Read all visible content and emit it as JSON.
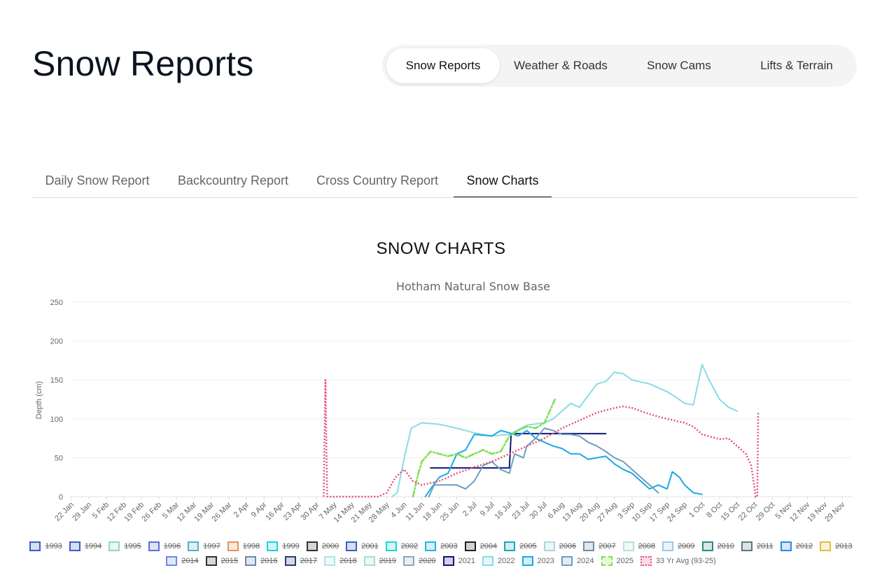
{
  "page": {
    "title": "Snow Reports"
  },
  "topnav": {
    "tabs": [
      {
        "label": "Snow Reports",
        "active": true
      },
      {
        "label": "Weather & Roads",
        "active": false
      },
      {
        "label": "Snow Cams",
        "active": false
      },
      {
        "label": "Lifts & Terrain",
        "active": false
      }
    ]
  },
  "subnav": {
    "tabs": [
      {
        "label": "Daily Snow Report",
        "active": false
      },
      {
        "label": "Backcountry Report",
        "active": false
      },
      {
        "label": "Cross Country Report",
        "active": false
      },
      {
        "label": "Snow Charts",
        "active": true
      }
    ]
  },
  "section": {
    "title": "SNOW CHARTS"
  },
  "chart_data": {
    "type": "line",
    "title": "Hotham Natural Snow Base",
    "ylabel": "Depth (cm)",
    "xlabel": "",
    "ylim": [
      0,
      250
    ],
    "yticks": [
      0,
      50,
      100,
      150,
      200,
      250
    ],
    "grid": true,
    "legend_position": "bottom",
    "categories": [
      "22 Jan",
      "29 Jan",
      "5 Feb",
      "12 Feb",
      "19 Feb",
      "26 Feb",
      "5 Mar",
      "12 Mar",
      "19 Mar",
      "26 Mar",
      "2 Apr",
      "9 Apr",
      "16 Apr",
      "23 Apr",
      "30 Apr",
      "7 May",
      "14 May",
      "21 May",
      "28 May",
      "4 Jun",
      "11 Jun",
      "18 Jun",
      "25 Jun",
      "2 Jul",
      "9 Jul",
      "16 Jul",
      "23 Jul",
      "30 Jul",
      "6 Aug",
      "13 Aug",
      "20 Aug",
      "27 Aug",
      "3 Sep",
      "10 Sep",
      "17 Sep",
      "24 Sep",
      "1 Oct",
      "8 Oct",
      "15 Oct",
      "22 Oct",
      "29 Oct",
      "5 Nov",
      "12 Nov",
      "19 Nov",
      "29 Nov"
    ],
    "legend": [
      {
        "name": "1993",
        "color": "#3b5fc0",
        "hidden": true
      },
      {
        "name": "1994",
        "color": "#3b5fc0",
        "hidden": true
      },
      {
        "name": "1995",
        "color": "#8fd6cc",
        "hidden": true
      },
      {
        "name": "1996",
        "color": "#5a6fd6",
        "hidden": true
      },
      {
        "name": "1997",
        "color": "#4fb3c4",
        "hidden": true
      },
      {
        "name": "1998",
        "color": "#e0955a",
        "hidden": true
      },
      {
        "name": "1999",
        "color": "#1fd1d6",
        "hidden": true
      },
      {
        "name": "2000",
        "color": "#333333",
        "hidden": true
      },
      {
        "name": "2001",
        "color": "#3b5fc0",
        "hidden": true
      },
      {
        "name": "2002",
        "color": "#1fd6d6",
        "hidden": true
      },
      {
        "name": "2003",
        "color": "#1fb8e0",
        "hidden": true
      },
      {
        "name": "2004",
        "color": "#222222",
        "hidden": true
      },
      {
        "name": "2005",
        "color": "#1aa8b8",
        "hidden": true
      },
      {
        "name": "2006",
        "color": "#a8d8dc",
        "hidden": true
      },
      {
        "name": "2007",
        "color": "#6f8fa8",
        "hidden": true
      },
      {
        "name": "2008",
        "color": "#b8e0dc",
        "hidden": true
      },
      {
        "name": "2009",
        "color": "#9fc8e6",
        "hidden": true
      },
      {
        "name": "2010",
        "color": "#2a8a80",
        "hidden": true
      },
      {
        "name": "2011",
        "color": "#5a7a80",
        "hidden": true
      },
      {
        "name": "2012",
        "color": "#2a8ae0",
        "hidden": true
      },
      {
        "name": "2013",
        "color": "#e0c040",
        "hidden": true
      },
      {
        "name": "2014",
        "color": "#6a8ae6",
        "hidden": true
      },
      {
        "name": "2015",
        "color": "#333333",
        "hidden": true
      },
      {
        "name": "2016",
        "color": "#6a8aa8",
        "hidden": true
      },
      {
        "name": "2017",
        "color": "#2a3a70",
        "hidden": true
      },
      {
        "name": "2018",
        "color": "#a8e6e0",
        "hidden": true
      },
      {
        "name": "2019",
        "color": "#a8ddd6",
        "hidden": true
      },
      {
        "name": "2020",
        "color": "#8aa8c0",
        "hidden": true
      },
      {
        "name": "2021",
        "color": "#15157a",
        "hidden": false
      },
      {
        "name": "2022",
        "color": "#86dde6",
        "hidden": false
      },
      {
        "name": "2023",
        "color": "#1ca8e6",
        "hidden": false
      },
      {
        "name": "2024",
        "color": "#6e9ec0",
        "hidden": false
      },
      {
        "name": "2025",
        "color": "#7ee04e",
        "hidden": false
      },
      {
        "name": "33 Yr Avg (93-25)",
        "color": "#e6507a",
        "hidden": false
      }
    ],
    "series": [
      {
        "name": "2021",
        "color": "#15157a",
        "style": "solid",
        "points": [
          [
            20.5,
            37
          ],
          [
            25,
            37
          ],
          [
            25.1,
            81
          ],
          [
            30.5,
            81
          ]
        ]
      },
      {
        "name": "2022",
        "color": "#86dde6",
        "style": "solid",
        "points": [
          [
            18.3,
            0
          ],
          [
            18.6,
            5
          ],
          [
            19,
            50
          ],
          [
            19.4,
            88
          ],
          [
            20,
            95
          ],
          [
            21,
            93
          ],
          [
            22,
            88
          ],
          [
            23,
            82
          ],
          [
            24,
            78
          ],
          [
            25,
            80
          ],
          [
            26,
            92
          ],
          [
            27,
            95
          ],
          [
            27.5,
            100
          ],
          [
            28,
            110
          ],
          [
            28.5,
            120
          ],
          [
            29,
            115
          ],
          [
            29.5,
            130
          ],
          [
            30,
            145
          ],
          [
            30.5,
            148
          ],
          [
            31,
            160
          ],
          [
            31.5,
            158
          ],
          [
            32,
            150
          ],
          [
            33,
            145
          ],
          [
            34,
            135
          ],
          [
            34.5,
            128
          ],
          [
            35,
            120
          ],
          [
            35.5,
            118
          ],
          [
            36,
            170
          ],
          [
            36.4,
            150
          ],
          [
            37,
            125
          ],
          [
            37.5,
            115
          ],
          [
            38,
            110
          ]
        ]
      },
      {
        "name": "2023",
        "color": "#1ca8e6",
        "style": "solid",
        "points": [
          [
            20.2,
            0
          ],
          [
            20.5,
            10
          ],
          [
            21,
            25
          ],
          [
            21.5,
            30
          ],
          [
            22,
            55
          ],
          [
            22.5,
            60
          ],
          [
            23,
            80
          ],
          [
            24,
            78
          ],
          [
            24.5,
            85
          ],
          [
            25,
            82
          ],
          [
            25.5,
            78
          ],
          [
            26,
            85
          ],
          [
            26.5,
            75
          ],
          [
            27,
            70
          ],
          [
            27.5,
            65
          ],
          [
            28,
            62
          ],
          [
            28.5,
            55
          ],
          [
            29,
            55
          ],
          [
            29.5,
            48
          ],
          [
            30,
            50
          ],
          [
            30.5,
            52
          ],
          [
            31,
            42
          ],
          [
            31.5,
            35
          ],
          [
            32,
            30
          ],
          [
            32.5,
            20
          ],
          [
            33,
            10
          ],
          [
            33.5,
            15
          ],
          [
            34,
            10
          ],
          [
            34.3,
            32
          ],
          [
            34.7,
            25
          ],
          [
            35,
            15
          ],
          [
            35.5,
            5
          ],
          [
            36,
            3
          ]
        ]
      },
      {
        "name": "2024",
        "color": "#6e9ec0",
        "style": "solid",
        "points": [
          [
            20.4,
            0
          ],
          [
            20.7,
            15
          ],
          [
            22,
            15
          ],
          [
            22.5,
            10
          ],
          [
            23,
            20
          ],
          [
            23.5,
            40
          ],
          [
            24,
            45
          ],
          [
            24.5,
            35
          ],
          [
            25,
            30
          ],
          [
            25.3,
            55
          ],
          [
            25.8,
            50
          ],
          [
            26,
            65
          ],
          [
            26.5,
            75
          ],
          [
            27,
            88
          ],
          [
            27.5,
            85
          ],
          [
            28,
            80
          ],
          [
            28.5,
            80
          ],
          [
            29,
            78
          ],
          [
            29.5,
            70
          ],
          [
            30,
            65
          ],
          [
            30.5,
            58
          ],
          [
            31,
            50
          ],
          [
            31.5,
            45
          ],
          [
            32,
            35
          ],
          [
            32.5,
            25
          ],
          [
            33,
            15
          ],
          [
            33.5,
            5
          ]
        ]
      },
      {
        "name": "2025",
        "color": "#7ee04e",
        "style": "dashdot",
        "points": [
          [
            19.5,
            0
          ],
          [
            19.8,
            30
          ],
          [
            20,
            45
          ],
          [
            20.5,
            58
          ],
          [
            21,
            55
          ],
          [
            21.5,
            52
          ],
          [
            22,
            55
          ],
          [
            22.5,
            50
          ],
          [
            23,
            55
          ],
          [
            23.5,
            60
          ],
          [
            24,
            55
          ],
          [
            24.5,
            58
          ],
          [
            25,
            78
          ],
          [
            25.5,
            85
          ],
          [
            26,
            90
          ],
          [
            26.5,
            88
          ],
          [
            27,
            95
          ],
          [
            27.3,
            110
          ],
          [
            27.6,
            125
          ]
        ]
      },
      {
        "name": "33 Yr Avg (93-25)",
        "color": "#e6507a",
        "style": "dotted",
        "points": [
          [
            14.4,
            0
          ],
          [
            14.5,
            150
          ],
          [
            14.6,
            0
          ],
          [
            17.5,
            0
          ],
          [
            18,
            5
          ],
          [
            18.5,
            25
          ],
          [
            19,
            35
          ],
          [
            19.5,
            20
          ],
          [
            20,
            15
          ],
          [
            21,
            20
          ],
          [
            22,
            30
          ],
          [
            23,
            38
          ],
          [
            24,
            45
          ],
          [
            25,
            55
          ],
          [
            26,
            65
          ],
          [
            27,
            75
          ],
          [
            28,
            88
          ],
          [
            29,
            98
          ],
          [
            30,
            108
          ],
          [
            31,
            114
          ],
          [
            31.5,
            116
          ],
          [
            32,
            114
          ],
          [
            33,
            106
          ],
          [
            34,
            100
          ],
          [
            35,
            95
          ],
          [
            35.5,
            90
          ],
          [
            36,
            80
          ],
          [
            36.5,
            77
          ],
          [
            37,
            74
          ],
          [
            37.5,
            75
          ],
          [
            38,
            65
          ],
          [
            38.5,
            55
          ],
          [
            38.8,
            40
          ],
          [
            39,
            10
          ],
          [
            39.05,
            0
          ],
          [
            39.15,
            0
          ],
          [
            39.2,
            108
          ]
        ]
      }
    ]
  }
}
